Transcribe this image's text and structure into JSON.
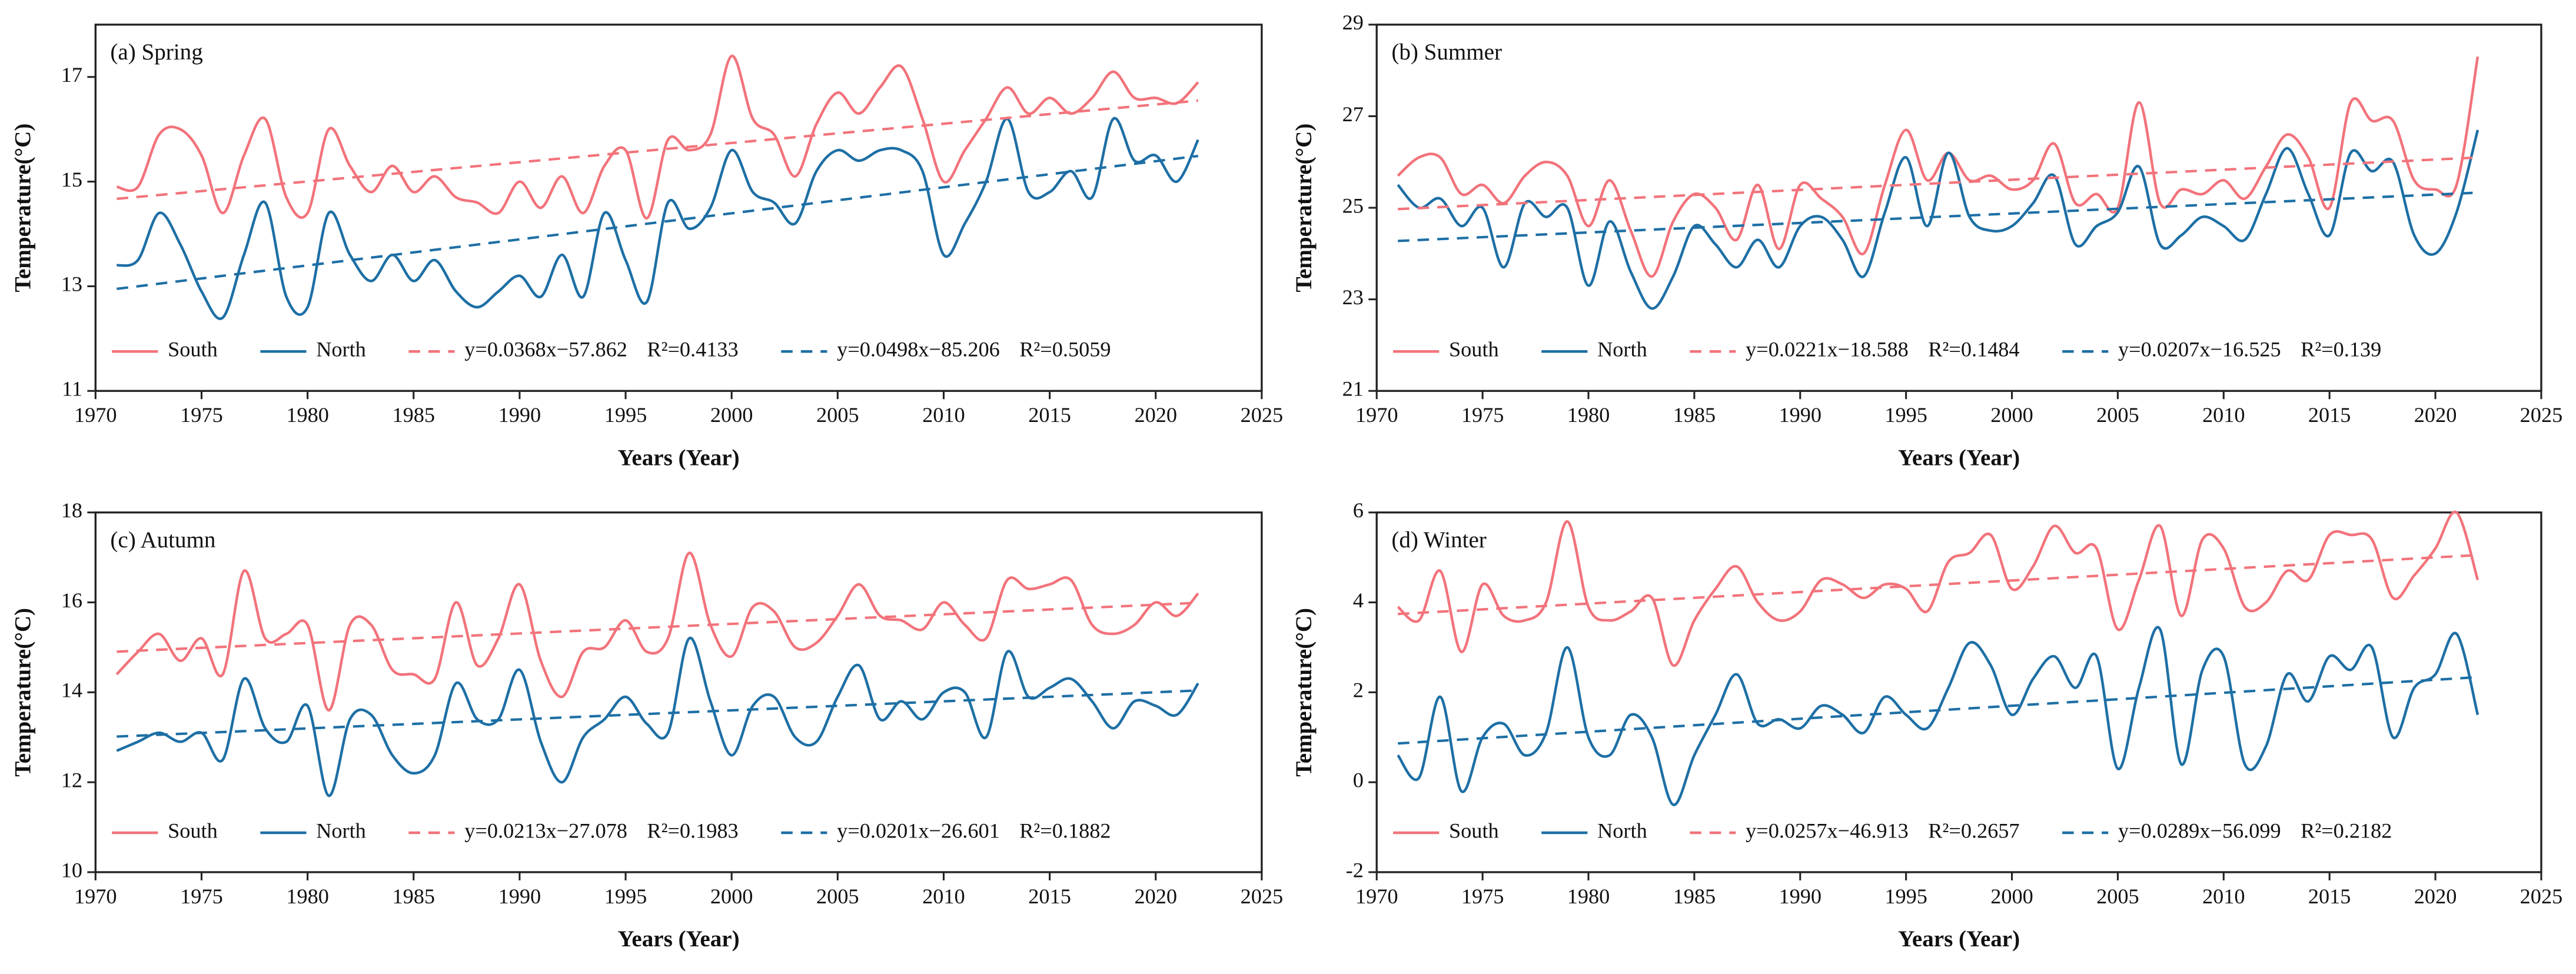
{
  "chart_data": [
    {
      "type": "line",
      "title": "(a) Spring",
      "xlabel": "Years (Year)",
      "ylabel": "Temperature(°C)",
      "x": [
        1971,
        1972,
        1973,
        1974,
        1975,
        1976,
        1977,
        1978,
        1979,
        1980,
        1981,
        1982,
        1983,
        1984,
        1985,
        1986,
        1987,
        1988,
        1989,
        1990,
        1991,
        1992,
        1993,
        1994,
        1995,
        1996,
        1997,
        1998,
        1999,
        2000,
        2001,
        2002,
        2003,
        2004,
        2005,
        2006,
        2007,
        2008,
        2009,
        2010,
        2011,
        2012,
        2013,
        2014,
        2015,
        2016,
        2017,
        2018,
        2019,
        2020,
        2021,
        2022
      ],
      "series": [
        {
          "name": "South",
          "color": "#f2737b",
          "values": [
            14.9,
            14.9,
            15.9,
            16.0,
            15.5,
            14.4,
            15.5,
            16.2,
            14.7,
            14.4,
            16.0,
            15.3,
            14.8,
            15.3,
            14.8,
            15.1,
            14.7,
            14.6,
            14.4,
            15.0,
            14.5,
            15.1,
            14.4,
            15.3,
            15.6,
            14.3,
            15.8,
            15.6,
            15.9,
            17.4,
            16.2,
            15.9,
            15.1,
            16.1,
            16.7,
            16.3,
            16.8,
            17.2,
            16.2,
            15.0,
            15.6,
            16.2,
            16.8,
            16.3,
            16.6,
            16.3,
            16.6,
            17.1,
            16.6,
            16.6,
            16.5,
            16.9
          ]
        },
        {
          "name": "North",
          "color": "#1d6fa5",
          "values": [
            13.4,
            13.5,
            14.4,
            13.8,
            12.9,
            12.4,
            13.6,
            14.6,
            12.8,
            12.6,
            14.4,
            13.6,
            13.1,
            13.6,
            13.1,
            13.5,
            12.9,
            12.6,
            12.9,
            13.2,
            12.8,
            13.6,
            12.8,
            14.4,
            13.5,
            12.7,
            14.6,
            14.1,
            14.5,
            15.6,
            14.8,
            14.6,
            14.2,
            15.2,
            15.6,
            15.4,
            15.6,
            15.6,
            15.2,
            13.6,
            14.2,
            15.0,
            16.2,
            14.8,
            14.8,
            15.2,
            14.7,
            16.2,
            15.4,
            15.5,
            15.0,
            15.8
          ]
        }
      ],
      "trend_series": [
        {
          "name": "y=0.0368x−57.862",
          "r2": "R²=0.4133",
          "color": "#f2737b",
          "x": [
            1971,
            2022
          ],
          "values": [
            14.671,
            16.548
          ]
        },
        {
          "name": "y=0.0498x−85.206",
          "r2": "R²=0.5059",
          "color": "#1d6fa5",
          "x": [
            1971,
            2022
          ],
          "values": [
            12.95,
            15.49
          ]
        }
      ],
      "xlim": [
        1970,
        2025
      ],
      "xticks": [
        1970,
        1975,
        1980,
        1985,
        1990,
        1995,
        2000,
        2005,
        2010,
        2015,
        2020,
        2025
      ],
      "ylim": [
        11,
        18
      ],
      "yticks": [
        11,
        13,
        15,
        17
      ]
    },
    {
      "type": "line",
      "title": "(b) Summer",
      "xlabel": "Years (Year)",
      "ylabel": "Temperature(°C)",
      "x": [
        1971,
        1972,
        1973,
        1974,
        1975,
        1976,
        1977,
        1978,
        1979,
        1980,
        1981,
        1982,
        1983,
        1984,
        1985,
        1986,
        1987,
        1988,
        1989,
        1990,
        1991,
        1992,
        1993,
        1994,
        1995,
        1996,
        1997,
        1998,
        1999,
        2000,
        2001,
        2002,
        2003,
        2004,
        2005,
        2006,
        2007,
        2008,
        2009,
        2010,
        2011,
        2012,
        2013,
        2014,
        2015,
        2016,
        2017,
        2018,
        2019,
        2020,
        2021,
        2022
      ],
      "series": [
        {
          "name": "South",
          "color": "#f2737b",
          "values": [
            25.7,
            26.1,
            26.1,
            25.3,
            25.5,
            25.1,
            25.7,
            26.0,
            25.7,
            24.6,
            25.6,
            24.5,
            23.5,
            24.7,
            25.3,
            25.0,
            24.3,
            25.5,
            24.1,
            25.5,
            25.2,
            24.8,
            24.0,
            25.5,
            26.7,
            25.6,
            26.2,
            25.6,
            25.7,
            25.4,
            25.6,
            26.4,
            25.1,
            25.3,
            25.0,
            27.3,
            25.1,
            25.4,
            25.3,
            25.6,
            25.2,
            25.9,
            26.6,
            26.1,
            25.0,
            27.3,
            26.9,
            26.9,
            25.6,
            25.4,
            25.5,
            28.3
          ]
        },
        {
          "name": "North",
          "color": "#1d6fa5",
          "values": [
            25.5,
            25.0,
            25.2,
            24.6,
            25.0,
            23.7,
            25.1,
            24.8,
            25.0,
            23.3,
            24.7,
            23.6,
            22.8,
            23.5,
            24.6,
            24.2,
            23.7,
            24.3,
            23.7,
            24.6,
            24.8,
            24.3,
            23.5,
            24.9,
            26.1,
            24.6,
            26.2,
            24.8,
            24.5,
            24.6,
            25.1,
            25.7,
            24.2,
            24.6,
            24.9,
            25.9,
            24.2,
            24.4,
            24.8,
            24.6,
            24.3,
            25.3,
            26.3,
            25.3,
            24.4,
            26.2,
            25.8,
            26.0,
            24.4,
            24.0,
            24.9,
            26.7
          ]
        }
      ],
      "trend_series": [
        {
          "name": "y=0.0221x−18.588",
          "r2": "R²=0.1484",
          "color": "#f2737b",
          "x": [
            1971,
            2022
          ],
          "values": [
            24.971,
            26.098
          ]
        },
        {
          "name": "y=0.0207x−16.525",
          "r2": "R²=0.139",
          "color": "#1d6fa5",
          "x": [
            1971,
            2022
          ],
          "values": [
            24.275,
            25.33
          ]
        }
      ],
      "xlim": [
        1970,
        2025
      ],
      "xticks": [
        1970,
        1975,
        1980,
        1985,
        1990,
        1995,
        2000,
        2005,
        2010,
        2015,
        2020,
        2025
      ],
      "ylim": [
        21,
        29
      ],
      "yticks": [
        21,
        23,
        25,
        27,
        29
      ]
    },
    {
      "type": "line",
      "title": "(c) Autumn",
      "xlabel": "Years (Year)",
      "ylabel": "Temperature(°C)",
      "x": [
        1971,
        1972,
        1973,
        1974,
        1975,
        1976,
        1977,
        1978,
        1979,
        1980,
        1981,
        1982,
        1983,
        1984,
        1985,
        1986,
        1987,
        1988,
        1989,
        1990,
        1991,
        1992,
        1993,
        1994,
        1995,
        1996,
        1997,
        1998,
        1999,
        2000,
        2001,
        2002,
        2003,
        2004,
        2005,
        2006,
        2007,
        2008,
        2009,
        2010,
        2011,
        2012,
        2013,
        2014,
        2015,
        2016,
        2017,
        2018,
        2019,
        2020,
        2021,
        2022
      ],
      "series": [
        {
          "name": "South",
          "color": "#f2737b",
          "values": [
            14.4,
            14.9,
            15.3,
            14.7,
            15.2,
            14.4,
            16.7,
            15.2,
            15.3,
            15.5,
            13.6,
            15.5,
            15.5,
            14.5,
            14.4,
            14.3,
            16.0,
            14.6,
            15.2,
            16.4,
            14.7,
            13.9,
            14.9,
            15.0,
            15.6,
            14.9,
            15.2,
            17.1,
            15.5,
            14.8,
            15.9,
            15.8,
            15.0,
            15.1,
            15.7,
            16.4,
            15.7,
            15.6,
            15.4,
            16.0,
            15.5,
            15.2,
            16.5,
            16.3,
            16.4,
            16.5,
            15.5,
            15.3,
            15.5,
            16.0,
            15.7,
            16.2
          ]
        },
        {
          "name": "North",
          "color": "#1d6fa5",
          "values": [
            12.7,
            12.9,
            13.1,
            12.9,
            13.1,
            12.5,
            14.3,
            13.2,
            12.9,
            13.7,
            11.7,
            13.4,
            13.5,
            12.6,
            12.2,
            12.6,
            14.2,
            13.4,
            13.4,
            14.5,
            12.9,
            12.0,
            13.0,
            13.4,
            13.9,
            13.3,
            13.1,
            15.2,
            13.8,
            12.6,
            13.7,
            13.9,
            13.0,
            12.9,
            13.9,
            14.6,
            13.4,
            13.8,
            13.4,
            14.0,
            14.0,
            13.0,
            14.9,
            13.9,
            14.1,
            14.3,
            13.8,
            13.2,
            13.8,
            13.7,
            13.5,
            14.2
          ]
        }
      ],
      "trend_series": [
        {
          "name": "y=0.0213x−27.078",
          "r2": "R²=0.1983",
          "color": "#f2737b",
          "x": [
            1971,
            2022
          ],
          "values": [
            14.904,
            15.991
          ]
        },
        {
          "name": "y=0.0201x−26.601",
          "r2": "R²=0.1882",
          "color": "#1d6fa5",
          "x": [
            1971,
            2022
          ],
          "values": [
            13.016,
            14.041
          ]
        }
      ],
      "xlim": [
        1970,
        2025
      ],
      "xticks": [
        1970,
        1975,
        1980,
        1985,
        1990,
        1995,
        2000,
        2005,
        2010,
        2015,
        2020,
        2025
      ],
      "ylim": [
        10,
        18
      ],
      "yticks": [
        10,
        12,
        14,
        16,
        18
      ]
    },
    {
      "type": "line",
      "title": "(d) Winter",
      "xlabel": "Years (Year)",
      "ylabel": "Temperature(°C)",
      "x": [
        1971,
        1972,
        1973,
        1974,
        1975,
        1976,
        1977,
        1978,
        1979,
        1980,
        1981,
        1982,
        1983,
        1984,
        1985,
        1986,
        1987,
        1988,
        1989,
        1990,
        1991,
        1992,
        1993,
        1994,
        1995,
        1996,
        1997,
        1998,
        1999,
        2000,
        2001,
        2002,
        2003,
        2004,
        2005,
        2006,
        2007,
        2008,
        2009,
        2010,
        2011,
        2012,
        2013,
        2014,
        2015,
        2016,
        2017,
        2018,
        2019,
        2020,
        2021,
        2022
      ],
      "series": [
        {
          "name": "South",
          "color": "#f2737b",
          "values": [
            3.9,
            3.6,
            4.7,
            2.9,
            4.4,
            3.7,
            3.6,
            4.0,
            5.8,
            3.9,
            3.6,
            3.8,
            4.1,
            2.6,
            3.6,
            4.3,
            4.8,
            4.0,
            3.6,
            3.8,
            4.5,
            4.4,
            4.1,
            4.4,
            4.3,
            3.8,
            4.9,
            5.1,
            5.5,
            4.3,
            4.8,
            5.7,
            5.1,
            5.2,
            3.4,
            4.5,
            5.7,
            3.7,
            5.4,
            5.2,
            3.9,
            4.0,
            4.7,
            4.5,
            5.5,
            5.5,
            5.4,
            4.1,
            4.6,
            5.2,
            6.0,
            4.5
          ]
        },
        {
          "name": "North",
          "color": "#1d6fa5",
          "values": [
            0.6,
            0.1,
            1.9,
            -0.2,
            1.0,
            1.3,
            0.6,
            1.1,
            3.0,
            1.0,
            0.6,
            1.5,
            1.0,
            -0.5,
            0.6,
            1.5,
            2.4,
            1.3,
            1.4,
            1.2,
            1.7,
            1.5,
            1.1,
            1.9,
            1.5,
            1.2,
            2.1,
            3.1,
            2.6,
            1.5,
            2.3,
            2.8,
            2.1,
            2.8,
            0.3,
            2.1,
            3.4,
            0.4,
            2.5,
            2.8,
            0.4,
            0.8,
            2.4,
            1.8,
            2.8,
            2.5,
            3.0,
            1.0,
            2.1,
            2.4,
            3.3,
            1.5
          ]
        }
      ],
      "trend_series": [
        {
          "name": "y=0.0257x−46.913",
          "r2": "R²=0.2657",
          "color": "#f2737b",
          "x": [
            1971,
            2022
          ],
          "values": [
            3.742,
            5.052
          ]
        },
        {
          "name": "y=0.0289x−56.099",
          "r2": "R²=0.2182",
          "color": "#1d6fa5",
          "x": [
            1971,
            2022
          ],
          "values": [
            0.863,
            2.337
          ]
        }
      ],
      "xlim": [
        1970,
        2025
      ],
      "xticks": [
        1970,
        1975,
        1980,
        1985,
        1990,
        1995,
        2000,
        2005,
        2010,
        2015,
        2020,
        2025
      ],
      "ylim": [
        -2,
        6
      ],
      "yticks": [
        -2,
        0,
        2,
        4,
        6
      ]
    }
  ]
}
